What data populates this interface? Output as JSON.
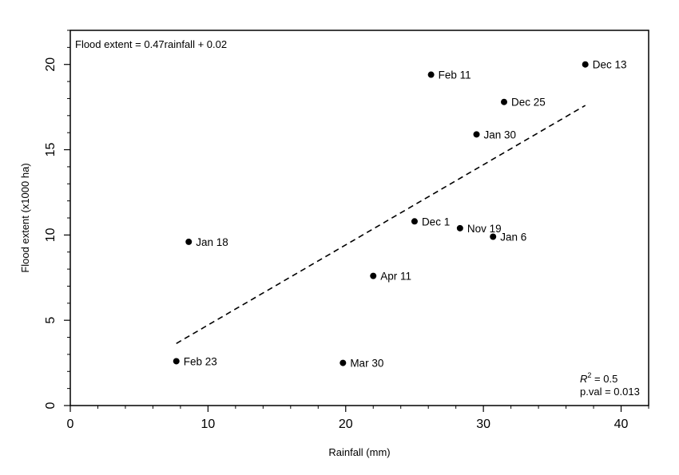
{
  "chart_data": {
    "type": "scatter",
    "title": "",
    "xlabel": "Rainfall (mm)",
    "ylabel": "Flood extent (x1000 ha)",
    "xlim": [
      0,
      42
    ],
    "ylim": [
      0,
      22
    ],
    "x_ticks": [
      0,
      10,
      20,
      30,
      40
    ],
    "y_ticks": [
      0,
      5,
      10,
      15,
      20
    ],
    "x_tick_labels": [
      "0",
      "10",
      "20",
      "30",
      "40"
    ],
    "y_tick_labels": [
      "0",
      "5",
      "10",
      "15",
      "20"
    ],
    "x_minor_ticks": [
      2,
      4,
      6,
      8,
      12,
      14,
      16,
      18,
      22,
      24,
      26,
      28,
      32,
      34,
      36,
      38,
      42
    ],
    "y_minor_ticks": [
      1,
      2,
      3,
      4,
      6,
      7,
      8,
      9,
      11,
      12,
      13,
      14,
      16,
      17,
      18,
      19,
      21,
      22
    ],
    "grid": false,
    "points": [
      {
        "label": "Dec 13",
        "x": 37.4,
        "y": 20.0
      },
      {
        "label": "Feb 11",
        "x": 26.2,
        "y": 19.4
      },
      {
        "label": "Dec 25",
        "x": 31.5,
        "y": 17.8
      },
      {
        "label": "Jan 30",
        "x": 29.5,
        "y": 15.9
      },
      {
        "label": "Dec 1",
        "x": 25.0,
        "y": 10.8
      },
      {
        "label": "Nov 19",
        "x": 28.3,
        "y": 10.4
      },
      {
        "label": "Jan 6",
        "x": 30.7,
        "y": 9.9
      },
      {
        "label": "Jan 18",
        "x": 8.6,
        "y": 9.6
      },
      {
        "label": "Apr 11",
        "x": 22.0,
        "y": 7.6
      },
      {
        "label": "Feb 23",
        "x": 7.7,
        "y": 2.6
      },
      {
        "label": "Mar 30",
        "x": 19.8,
        "y": 2.5
      }
    ],
    "fit_line": {
      "slope": 0.47,
      "intercept": 0.02,
      "x_start": 7.7,
      "x_end": 37.4,
      "style": "dashed"
    },
    "annotations": {
      "equation": "Flood extent  = 0.47rainfall + 0.02",
      "r2_prefix": "R",
      "r2_superscript": "2",
      "r2_value": " = 0.5",
      "pval": "p.val = 0.013"
    }
  }
}
